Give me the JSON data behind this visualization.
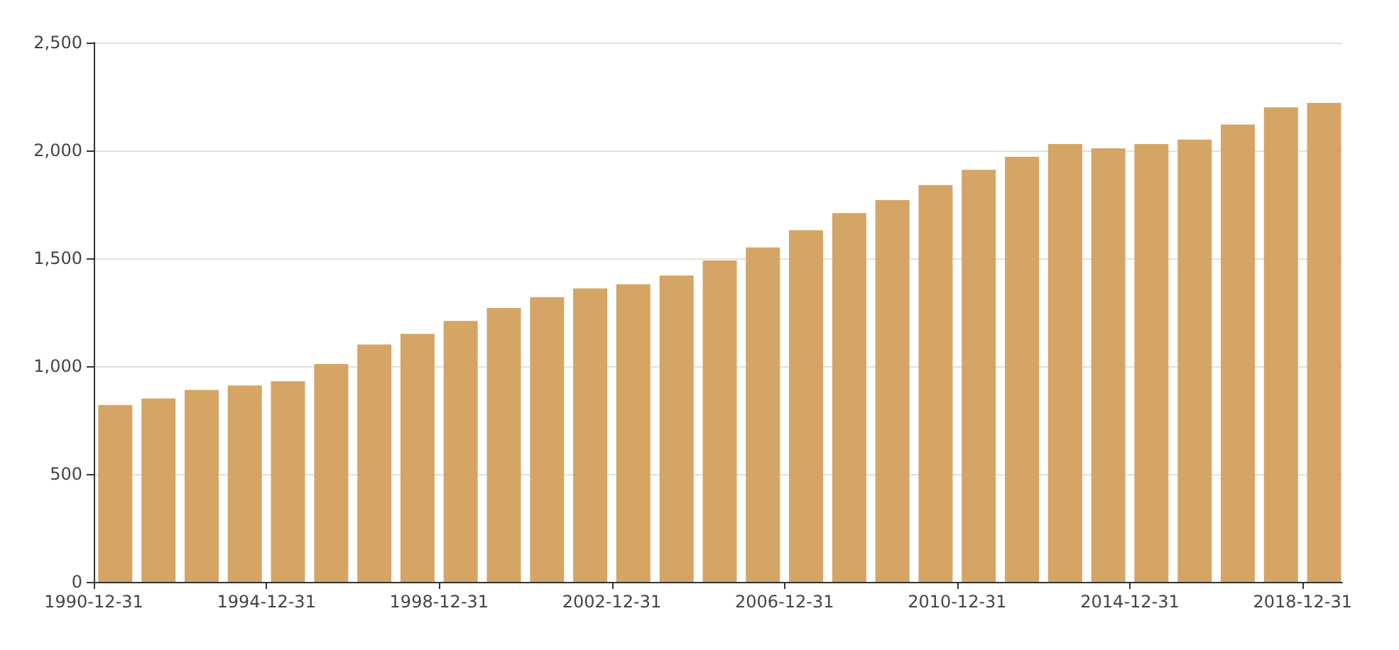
{
  "chart_data": {
    "type": "bar",
    "x": [
      "1991-07-01",
      "1992-07-01",
      "1993-07-01",
      "1994-07-01",
      "1995-07-01",
      "1996-07-01",
      "1997-07-01",
      "1998-07-01",
      "1999-07-01",
      "2000-07-01",
      "2001-07-01",
      "2002-07-01",
      "2003-07-01",
      "2004-07-01",
      "2005-07-01",
      "2006-07-01",
      "2007-07-01",
      "2008-07-01",
      "2009-07-01",
      "2010-07-01",
      "2011-07-01",
      "2012-07-01",
      "2013-07-01",
      "2014-07-01",
      "2015-07-01",
      "2016-07-01",
      "2017-07-01",
      "2018-07-01",
      "2019-07-01"
    ],
    "values": [
      820,
      850,
      890,
      910,
      930,
      1010,
      1100,
      1150,
      1210,
      1270,
      1320,
      1360,
      1380,
      1420,
      1490,
      1550,
      1630,
      1710,
      1770,
      1840,
      1910,
      1970,
      2030,
      2010,
      2030,
      2050,
      2120,
      2200,
      2220
    ],
    "color": "#d4a565",
    "xlim": [
      "1990-12-31",
      "2019-12-01"
    ],
    "xticks": [
      "1990-12-31",
      "1994-12-31",
      "1998-12-31",
      "2002-12-31",
      "2006-12-31",
      "2010-12-31",
      "2014-12-31",
      "2018-12-31"
    ],
    "ylim": [
      0,
      2500
    ],
    "yticks": [
      0,
      {
        "value": 500,
        "label": "500"
      },
      {
        "value": 1000,
        "label": "1,000"
      },
      {
        "value": 1500,
        "label": "1,500"
      },
      {
        "value": 2000,
        "label": "2,000"
      },
      {
        "value": 2500,
        "label": "2,500"
      }
    ],
    "grid": "y"
  }
}
